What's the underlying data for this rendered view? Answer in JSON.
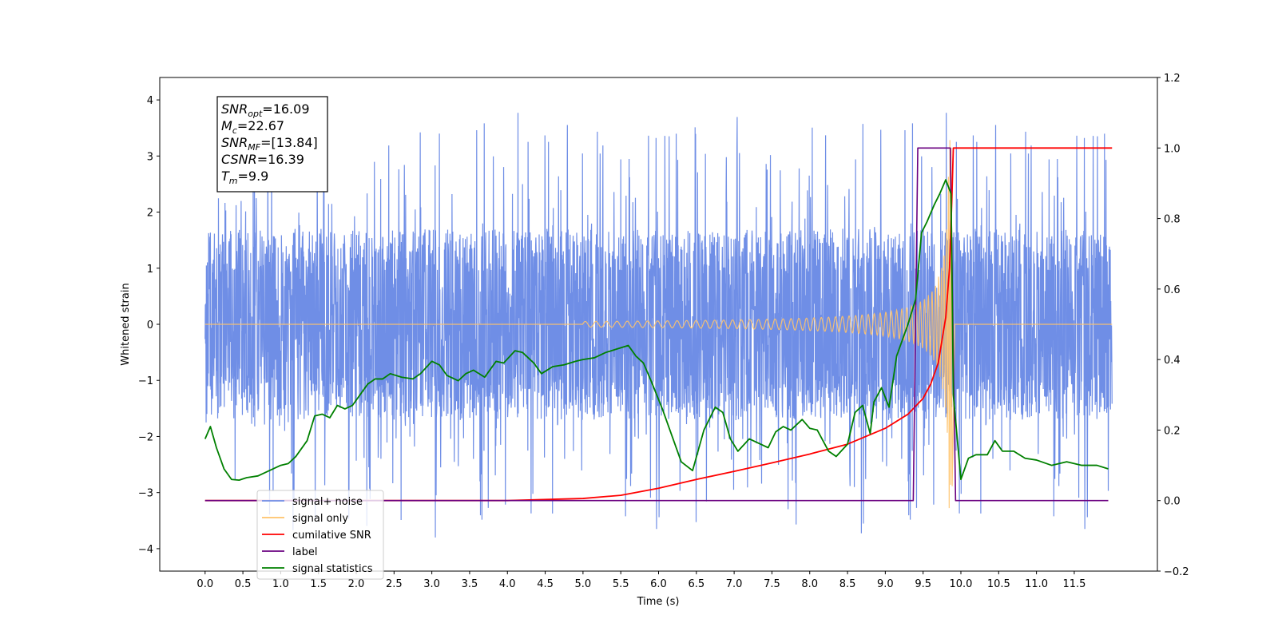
{
  "chart_data": {
    "type": "line",
    "xlabel": "Time (s)",
    "ylabel_left": "Whitened strain",
    "xlim": [
      -0.6,
      12.6
    ],
    "ylim_left": [
      -4.4,
      4.4
    ],
    "ylim_right": [
      -0.2,
      1.2
    ],
    "x_ticks": [
      0.0,
      0.5,
      1.0,
      1.5,
      2.0,
      2.5,
      3.0,
      3.5,
      4.0,
      4.5,
      5.0,
      5.5,
      6.0,
      6.5,
      7.0,
      7.5,
      8.0,
      8.5,
      9.0,
      9.5,
      10.0,
      10.5,
      11.0,
      11.5
    ],
    "x_tick_labels": [
      "0.0",
      "0.5",
      "1.0",
      "1.5",
      "2.0",
      "2.5",
      "3.0",
      "3.5",
      "4.0",
      "4.5",
      "5.0",
      "5.5",
      "6.0",
      "6.5",
      "7.0",
      "7.5",
      "8.0",
      "8.5",
      "9.0",
      "9.5",
      "10.0",
      "10.5",
      "11.0",
      "11.5"
    ],
    "y_ticks_left": [
      -4,
      -3,
      -2,
      -1,
      0,
      1,
      2,
      3,
      4
    ],
    "y_tick_labels_left": [
      "−4",
      "−3",
      "−2",
      "−1",
      "0",
      "1",
      "2",
      "3",
      "4"
    ],
    "y_ticks_right": [
      -0.2,
      0.0,
      0.2,
      0.4,
      0.6,
      0.8,
      1.0,
      1.2
    ],
    "y_tick_labels_right": [
      "−0.2",
      "0.0",
      "0.2",
      "0.4",
      "0.6",
      "0.8",
      "1.0",
      "1.2"
    ],
    "annotation": {
      "lines": [
        {
          "main": "SNR",
          "sub": "opt",
          "rest": "=16.09"
        },
        {
          "main": "M",
          "sub": "c",
          "rest": "=22.67"
        },
        {
          "main": "SNR",
          "sub": "MF",
          "rest": "=[13.84]"
        },
        {
          "main": "CSNR",
          "sub": "",
          "rest": "=16.39"
        },
        {
          "main": "T",
          "sub": "m",
          "rest": "=9.9"
        }
      ]
    },
    "legend": {
      "location": "lower-left",
      "entries": [
        {
          "label": "signal+ noise",
          "color": "#6f8ee6"
        },
        {
          "label": "signal only",
          "color": "#ffc36a"
        },
        {
          "label": "cumilative SNR",
          "color": "#ff0000"
        },
        {
          "label": "label",
          "color": "#6a0080"
        },
        {
          "label": "signal statistics",
          "color": "#008000"
        }
      ]
    },
    "series": [
      {
        "name": "signal+ noise",
        "axis": "left",
        "color": "#6f8ee6",
        "description_band": {
          "x_range": [
            0.0,
            12.0
          ],
          "typical_amplitude": 1.4,
          "peak_range": [
            -3.8,
            4.1
          ]
        }
      },
      {
        "name": "signal only",
        "axis": "left",
        "color": "#ffc36a",
        "chirp": {
          "start": 5.0,
          "merger": 9.88,
          "peak_amplitude": 3.3,
          "end": 9.92
        }
      },
      {
        "name": "cumilative SNR",
        "axis": "right",
        "color": "#ff0000",
        "x": [
          0.0,
          4.0,
          5.0,
          5.5,
          6.0,
          6.5,
          7.0,
          7.5,
          8.0,
          8.5,
          9.0,
          9.3,
          9.5,
          9.6,
          9.7,
          9.8,
          9.85,
          9.88,
          9.9,
          12.0
        ],
        "y": [
          0.0,
          0.0,
          0.006,
          0.015,
          0.035,
          0.06,
          0.083,
          0.107,
          0.132,
          0.16,
          0.205,
          0.245,
          0.29,
          0.33,
          0.39,
          0.52,
          0.66,
          0.85,
          1.0,
          1.0
        ]
      },
      {
        "name": "label",
        "axis": "right",
        "color": "#6a0080",
        "x": [
          0.0,
          9.37,
          9.43,
          9.86,
          9.93,
          11.95
        ],
        "y": [
          0.0,
          0.0,
          1.0,
          1.0,
          0.0,
          0.0
        ]
      },
      {
        "name": "signal statistics",
        "axis": "right",
        "color": "#008000",
        "x": [
          0.0,
          0.07,
          0.15,
          0.25,
          0.35,
          0.45,
          0.55,
          0.7,
          0.85,
          1.0,
          1.1,
          1.2,
          1.35,
          1.45,
          1.55,
          1.65,
          1.75,
          1.85,
          1.95,
          2.05,
          2.15,
          2.25,
          2.35,
          2.45,
          2.6,
          2.75,
          2.85,
          3.0,
          3.1,
          3.2,
          3.35,
          3.45,
          3.55,
          3.7,
          3.85,
          3.95,
          4.1,
          4.2,
          4.35,
          4.45,
          4.6,
          4.75,
          4.9,
          5.0,
          5.15,
          5.3,
          5.45,
          5.6,
          5.7,
          5.8,
          5.9,
          6.05,
          6.15,
          6.3,
          6.45,
          6.6,
          6.75,
          6.85,
          6.95,
          7.05,
          7.2,
          7.35,
          7.45,
          7.55,
          7.65,
          7.75,
          7.9,
          8.0,
          8.1,
          8.25,
          8.35,
          8.5,
          8.6,
          8.7,
          8.8,
          8.85,
          8.95,
          9.05,
          9.15,
          9.3,
          9.4,
          9.48,
          9.55,
          9.65,
          9.72,
          9.8,
          9.87,
          9.9,
          10.0,
          10.1,
          10.2,
          10.35,
          10.45,
          10.55,
          10.7,
          10.85,
          11.0,
          11.2,
          11.4,
          11.6,
          11.8,
          11.95
        ],
        "y": [
          0.175,
          0.21,
          0.15,
          0.09,
          0.06,
          0.058,
          0.065,
          0.07,
          0.085,
          0.1,
          0.105,
          0.125,
          0.17,
          0.24,
          0.245,
          0.235,
          0.27,
          0.26,
          0.27,
          0.3,
          0.33,
          0.345,
          0.345,
          0.36,
          0.35,
          0.345,
          0.36,
          0.395,
          0.385,
          0.355,
          0.34,
          0.36,
          0.37,
          0.35,
          0.395,
          0.39,
          0.425,
          0.42,
          0.39,
          0.36,
          0.38,
          0.385,
          0.395,
          0.4,
          0.405,
          0.42,
          0.43,
          0.44,
          0.41,
          0.39,
          0.34,
          0.26,
          0.2,
          0.11,
          0.085,
          0.2,
          0.265,
          0.25,
          0.175,
          0.14,
          0.175,
          0.16,
          0.15,
          0.195,
          0.21,
          0.2,
          0.23,
          0.205,
          0.2,
          0.14,
          0.125,
          0.16,
          0.25,
          0.27,
          0.19,
          0.28,
          0.32,
          0.265,
          0.41,
          0.5,
          0.57,
          0.76,
          0.79,
          0.84,
          0.87,
          0.91,
          0.87,
          0.3,
          0.06,
          0.12,
          0.13,
          0.13,
          0.17,
          0.14,
          0.14,
          0.12,
          0.115,
          0.1,
          0.11,
          0.1,
          0.1,
          0.09
        ]
      }
    ]
  }
}
